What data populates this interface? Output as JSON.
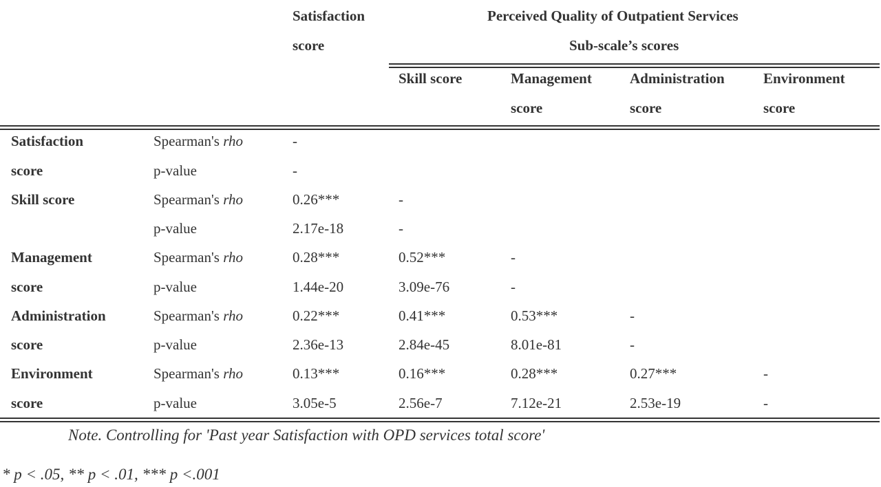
{
  "header": {
    "satisfaction": [
      "Satisfaction",
      "score"
    ],
    "group_title": "Perceived Quality of Outpatient Services",
    "group_subtitle": "Sub-scale’s scores",
    "columns": [
      [
        "Skill score",
        ""
      ],
      [
        "Management",
        "score"
      ],
      [
        "Administration",
        "score"
      ],
      [
        "Environment",
        "score"
      ]
    ]
  },
  "stat_labels": {
    "rho_prefix": "Spearman's ",
    "rho_symbol": "rho",
    "pvalue": "p-value"
  },
  "rows": [
    {
      "label": [
        "Satisfaction",
        "score"
      ],
      "rho": [
        "-"
      ],
      "p": [
        "-"
      ]
    },
    {
      "label": [
        "Skill score",
        ""
      ],
      "rho": [
        "0.26***",
        "-"
      ],
      "p": [
        "2.17e-18",
        "-"
      ]
    },
    {
      "label": [
        "Management",
        "score"
      ],
      "rho": [
        "0.28***",
        "0.52***",
        "-"
      ],
      "p": [
        "1.44e-20",
        "3.09e-76",
        "-"
      ]
    },
    {
      "label": [
        "Administration",
        "score"
      ],
      "rho": [
        "0.22***",
        "0.41***",
        "0.53***",
        "-"
      ],
      "p": [
        "2.36e-13",
        "2.84e-45",
        "8.01e-81",
        "-"
      ]
    },
    {
      "label": [
        "Environment",
        "score"
      ],
      "rho": [
        "0.13***",
        "0.16***",
        "0.28***",
        "0.27***",
        "-"
      ],
      "p": [
        "3.05e-5",
        "2.56e-7",
        "7.12e-21",
        "2.53e-19",
        "-"
      ]
    }
  ],
  "notes": {
    "note": "Note. Controlling for 'Past year Satisfaction with OPD services total score'",
    "significance": "* p < .05, ** p < .01, *** p <.001"
  }
}
